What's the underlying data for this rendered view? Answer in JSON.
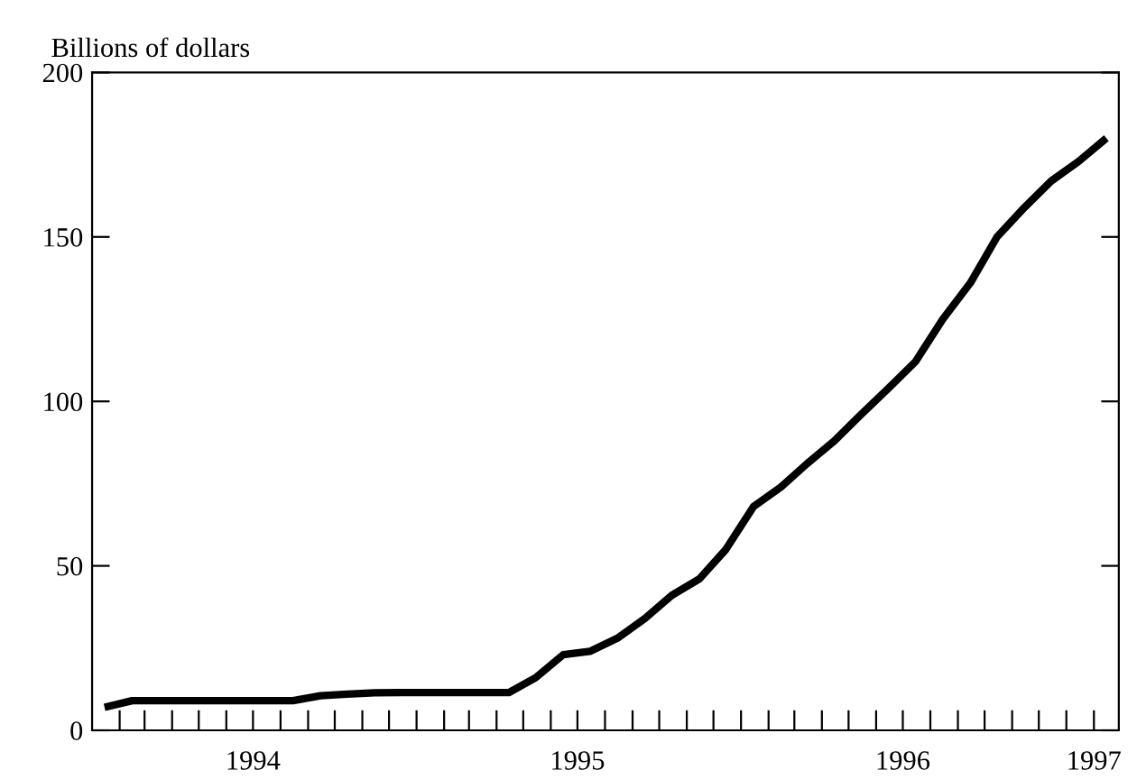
{
  "chart_data": {
    "type": "line",
    "ylabel": "Billions of dollars",
    "x": [
      "1994-01-15",
      "1994-02-15",
      "1994-03-15",
      "1994-04-15",
      "1994-05-15",
      "1994-06-15",
      "1994-07-15",
      "1994-08-15",
      "1994-09-15",
      "1994-10-15",
      "1994-11-15",
      "1994-12-15",
      "1995-01-15",
      "1995-02-15",
      "1995-03-15",
      "1995-04-15",
      "1995-05-15",
      "1995-06-15",
      "1995-07-15",
      "1995-08-15",
      "1995-09-15",
      "1995-10-15",
      "1995-11-15",
      "1995-12-15",
      "1996-01-15",
      "1996-02-15",
      "1996-03-15",
      "1996-04-15",
      "1996-05-15",
      "1996-06-15",
      "1996-07-15",
      "1996-08-15",
      "1996-09-15",
      "1996-10-15",
      "1996-11-15",
      "1996-12-15",
      "1997-01-15",
      "1997-02-15"
    ],
    "series": [
      {
        "color": "#000000",
        "values": [
          7,
          9,
          9,
          9,
          9,
          9,
          9,
          9,
          10.5,
          11,
          11.4,
          11.5,
          11.5,
          11.5,
          11.5,
          11.5,
          16,
          23,
          24,
          28,
          34,
          41,
          46,
          55,
          68,
          74,
          81,
          88,
          96,
          104,
          112,
          125,
          136,
          150,
          159,
          167,
          173,
          180
        ]
      }
    ],
    "xlim": [
      "1994-01-01",
      "1997-03-01"
    ],
    "xticks": [
      {
        "value": "1994-02-01",
        "label": null
      },
      {
        "value": "1994-03-01",
        "label": null
      },
      {
        "value": "1994-04-01",
        "label": null
      },
      {
        "value": "1994-05-01",
        "label": null
      },
      {
        "value": "1994-06-01",
        "label": null
      },
      {
        "value": "1994-07-01",
        "label": "1994"
      },
      {
        "value": "1994-08-01",
        "label": null
      },
      {
        "value": "1994-09-01",
        "label": null
      },
      {
        "value": "1994-10-01",
        "label": null
      },
      {
        "value": "1994-11-01",
        "label": null
      },
      {
        "value": "1994-12-01",
        "label": null
      },
      {
        "value": "1995-01-01",
        "label": null
      },
      {
        "value": "1995-02-01",
        "label": null
      },
      {
        "value": "1995-03-01",
        "label": null
      },
      {
        "value": "1995-04-01",
        "label": null
      },
      {
        "value": "1995-05-01",
        "label": null
      },
      {
        "value": "1995-06-01",
        "label": null
      },
      {
        "value": "1995-07-01",
        "label": "1995"
      },
      {
        "value": "1995-08-01",
        "label": null
      },
      {
        "value": "1995-09-01",
        "label": null
      },
      {
        "value": "1995-10-01",
        "label": null
      },
      {
        "value": "1995-11-01",
        "label": null
      },
      {
        "value": "1995-12-01",
        "label": null
      },
      {
        "value": "1996-01-01",
        "label": null
      },
      {
        "value": "1996-02-01",
        "label": null
      },
      {
        "value": "1996-03-01",
        "label": null
      },
      {
        "value": "1996-04-01",
        "label": null
      },
      {
        "value": "1996-05-01",
        "label": null
      },
      {
        "value": "1996-06-01",
        "label": null
      },
      {
        "value": "1996-07-01",
        "label": "1996"
      },
      {
        "value": "1996-08-01",
        "label": null
      },
      {
        "value": "1996-09-01",
        "label": null
      },
      {
        "value": "1996-10-01",
        "label": null
      },
      {
        "value": "1996-11-01",
        "label": null
      },
      {
        "value": "1996-12-01",
        "label": null
      },
      {
        "value": "1997-01-01",
        "label": null
      },
      {
        "value": "1997-02-01",
        "label": "1997"
      }
    ],
    "ylim": [
      0,
      200
    ],
    "yticks": [
      0,
      50,
      100,
      150,
      200
    ],
    "grid": false,
    "legend": false,
    "marker": "none",
    "line_style": "solid"
  }
}
